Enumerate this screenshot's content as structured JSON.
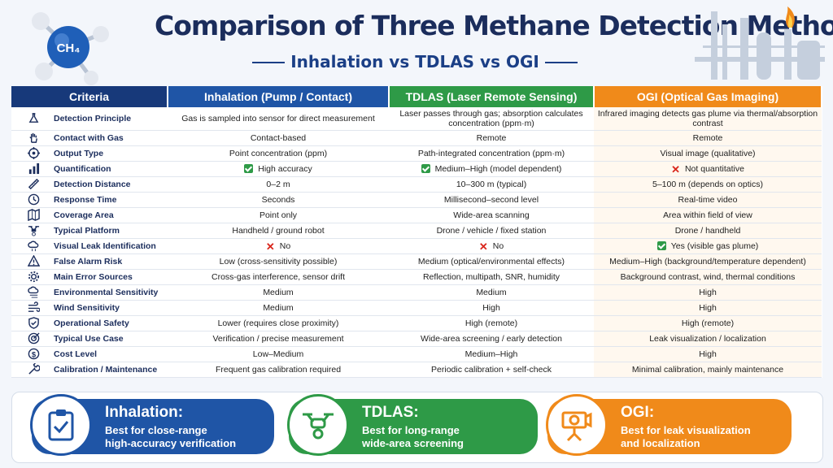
{
  "header": {
    "title": "Comparison of Three Methane Detection Methods",
    "subtitle": "Inhalation vs TDLAS vs OGI",
    "molecule_label": "CH₄"
  },
  "table": {
    "columns": [
      "Criteria",
      "Inhalation (Pump / Contact)",
      "TDLAS (Laser Remote Sensing)",
      "OGI (Optical Gas Imaging)"
    ],
    "rows": [
      {
        "icon": "flask-icon",
        "criteria": "Detection Principle",
        "inhalation": "Gas is sampled into sensor for direct measurement",
        "tdlas": "Laser passes through gas; absorption calculates concentration (ppm·m)",
        "ogi": "Infrared imaging detects gas plume via thermal/absorption contrast"
      },
      {
        "icon": "hand-icon",
        "criteria": "Contact with Gas",
        "inhalation": "Contact-based",
        "tdlas": "Remote",
        "ogi": "Remote"
      },
      {
        "icon": "target-icon",
        "criteria": "Output Type",
        "inhalation": "Point concentration (ppm)",
        "tdlas": "Path-integrated concentration (ppm·m)",
        "ogi": "Visual image (qualitative)"
      },
      {
        "icon": "bar-chart-icon",
        "criteria": "Quantification",
        "inhalation": "High accuracy",
        "tdlas": "Medium–High (model dependent)",
        "ogi": "Not quantitative",
        "inhalation_mark": "check",
        "tdlas_mark": "check",
        "ogi_mark": "cross"
      },
      {
        "icon": "ruler-icon",
        "criteria": "Detection Distance",
        "inhalation": "0–2 m",
        "tdlas": "10–300 m (typical)",
        "ogi": "5–100 m (depends on optics)"
      },
      {
        "icon": "clock-icon",
        "criteria": "Response Time",
        "inhalation": "Seconds",
        "tdlas": "Millisecond–second level",
        "ogi": "Real-time video"
      },
      {
        "icon": "map-icon",
        "criteria": "Coverage Area",
        "inhalation": "Point only",
        "tdlas": "Wide-area scanning",
        "ogi": "Area within field of view"
      },
      {
        "icon": "drone-icon",
        "criteria": "Typical Platform",
        "inhalation": "Handheld / ground robot",
        "tdlas": "Drone / vehicle / fixed station",
        "ogi": "Drone / handheld"
      },
      {
        "icon": "cloud-leak-icon",
        "criteria": "Visual Leak Identification",
        "inhalation": "No",
        "tdlas": "No",
        "ogi": "Yes (visible gas plume)",
        "inhalation_mark": "cross",
        "tdlas_mark": "cross",
        "ogi_mark": "check"
      },
      {
        "icon": "warning-icon",
        "criteria": "False Alarm Risk",
        "inhalation": "Low (cross-sensitivity possible)",
        "tdlas": "Medium (optical/environmental effects)",
        "ogi": "Medium–High (background/temperature dependent)"
      },
      {
        "icon": "gear-icon",
        "criteria": "Main Error Sources",
        "inhalation": "Cross-gas interference, sensor drift",
        "tdlas": "Reflection, multipath, SNR, humidity",
        "ogi": "Background contrast, wind, thermal conditions"
      },
      {
        "icon": "weather-icon",
        "criteria": "Environmental Sensitivity",
        "inhalation": "Medium",
        "tdlas": "Medium",
        "ogi": "High"
      },
      {
        "icon": "wind-icon",
        "criteria": "Wind Sensitivity",
        "inhalation": "Medium",
        "tdlas": "High",
        "ogi": "High"
      },
      {
        "icon": "shield-icon",
        "criteria": "Operational Safety",
        "inhalation": "Lower (requires close proximity)",
        "tdlas": "High (remote)",
        "ogi": "High (remote)"
      },
      {
        "icon": "bullseye-icon",
        "criteria": "Typical Use Case",
        "inhalation": "Verification / precise measurement",
        "tdlas": "Wide-area screening / early detection",
        "ogi": "Leak visualization / localization"
      },
      {
        "icon": "dollar-icon",
        "criteria": "Cost Level",
        "inhalation": "Low–Medium",
        "tdlas": "Medium–High",
        "ogi": "High"
      },
      {
        "icon": "wrench-icon",
        "criteria": "Calibration / Maintenance",
        "inhalation": "Frequent gas calibration required",
        "tdlas": "Periodic calibration + self-check",
        "ogi": "Minimal calibration, mainly maintenance"
      }
    ]
  },
  "summary": [
    {
      "icon": "clipboard-check-icon",
      "title": "Inhalation:",
      "line1": "Best for close-range",
      "line2": "high-accuracy verification"
    },
    {
      "icon": "drone-icon",
      "title": "TDLAS:",
      "line1": "Best for long-range",
      "line2": "wide-area screening"
    },
    {
      "icon": "camera-icon",
      "title": "OGI:",
      "line1": "Best for leak visualization",
      "line2": "and localization"
    }
  ],
  "colors": {
    "inhalation": "#1f55a6",
    "tdlas": "#2e9a47",
    "ogi": "#f08a1a",
    "navy": "#17397a"
  }
}
